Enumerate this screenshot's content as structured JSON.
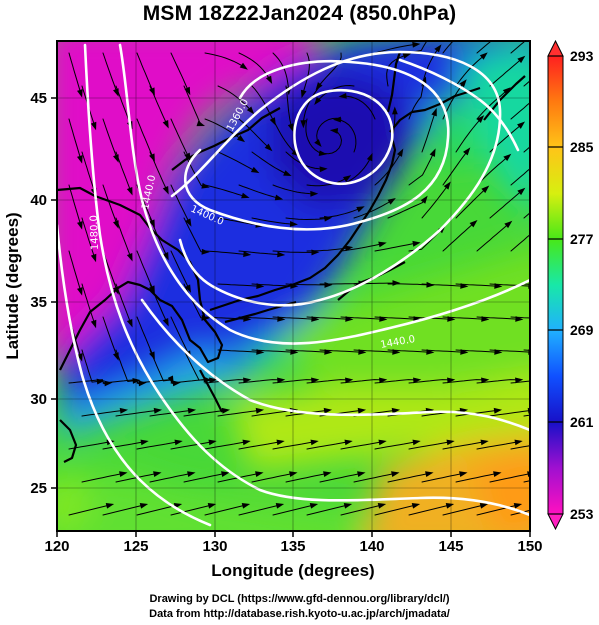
{
  "title": "MSM 18Z22Jan2024 (850.0hPa)",
  "x_axis": {
    "label": "Longitude (degrees)",
    "ticks": [
      "120",
      "125",
      "130",
      "135",
      "140",
      "145",
      "150"
    ]
  },
  "y_axis": {
    "label": "Latitude  (degrees)",
    "ticks": [
      "25",
      "30",
      "35",
      "40",
      "45"
    ]
  },
  "colorbar": {
    "ticks": [
      "293",
      "285",
      "277",
      "269",
      "261",
      "253"
    ],
    "colors": [
      "#ff2020",
      "#ff7a10",
      "#ffc418",
      "#d7ef10",
      "#48e818",
      "#18e8a8",
      "#20b0ff",
      "#1050ff",
      "#1810c8",
      "#a010d0",
      "#ff10c0"
    ]
  },
  "contours": {
    "labels": [
      "1360.0",
      "1400.0",
      "1440.0",
      "1440.0",
      "1480.0",
      "1480.0"
    ]
  },
  "credits": {
    "line1": "Drawing by DCL (https://www.gfd-dennou.org/library/dcl/)",
    "line2": "Data from http://database.rish.kyoto-u.ac.jp/arch/jmadata/"
  },
  "chart_data": {
    "type": "heatmap",
    "title": "MSM 18Z22Jan2024 (850.0hPa)",
    "xlabel": "Longitude (degrees)",
    "ylabel": "Latitude  (degrees)",
    "xlim": [
      120,
      150
    ],
    "ylim": [
      22.5,
      47.5
    ],
    "colorbar_range": [
      253,
      293
    ],
    "colorbar_ticks": [
      293,
      285,
      277,
      269,
      261,
      253
    ],
    "field": "850hPa temperature (K) shading, geopotential height contours, wind streamlines",
    "contour_levels": [
      1360,
      1400,
      1440,
      1480
    ],
    "low_center": {
      "lon": 137,
      "lat": 42.5
    }
  }
}
